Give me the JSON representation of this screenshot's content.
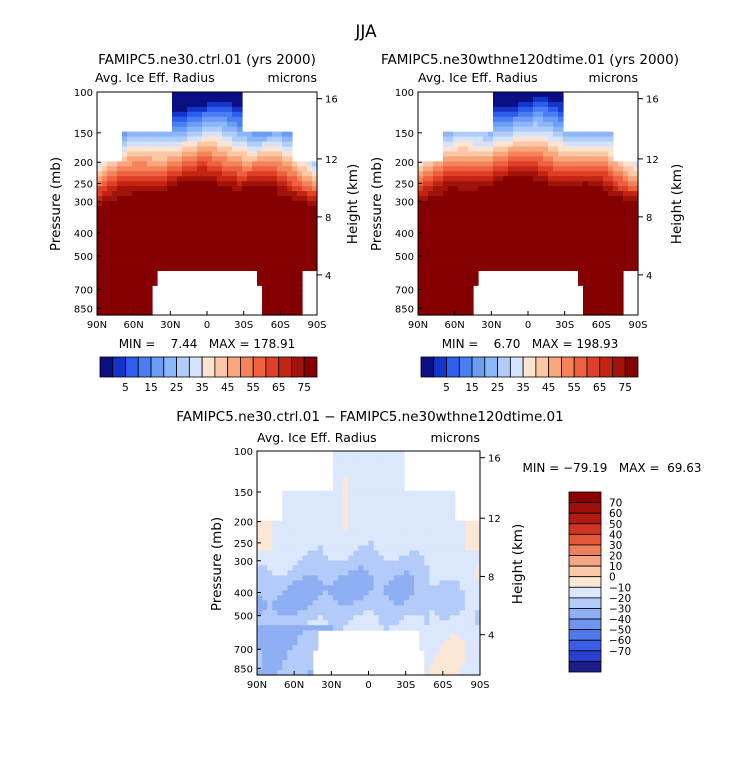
{
  "figure": {
    "title": "JJA"
  },
  "chart_data": [
    {
      "type": "heatmap",
      "title": "FAMIPC5.ne30.ctrl.01 (yrs 2000)",
      "subtitle_left": "Avg. Ice Eff. Radius",
      "subtitle_right": "microns",
      "ylabel": "Pressure (mb)",
      "y2label": "Height (km)",
      "x_ticks": [
        "90N",
        "60N",
        "30N",
        "0",
        "30S",
        "60S",
        "90S"
      ],
      "y_ticks": [
        "100",
        "150",
        "200",
        "250",
        "300",
        "400",
        "500",
        "700",
        "850"
      ],
      "y2_ticks": [
        "16",
        "12",
        "8",
        "4"
      ],
      "stats": "MIN =    7.44   MAX = 178.91",
      "colorbar": {
        "orientation": "horizontal",
        "labels": [
          "5",
          "15",
          "25",
          "35",
          "45",
          "55",
          "65",
          "75"
        ],
        "levels": [
          0,
          5,
          10,
          15,
          20,
          25,
          30,
          35,
          40,
          45,
          50,
          55,
          60,
          65,
          70,
          75,
          80
        ]
      }
    },
    {
      "type": "heatmap",
      "title": "FAMIPC5.ne30wthne120dtime.01 (yrs 2000)",
      "subtitle_left": "Avg. Ice Eff. Radius",
      "subtitle_right": "microns",
      "ylabel": "Pressure (mb)",
      "y2label": "Height (km)",
      "x_ticks": [
        "90N",
        "60N",
        "30N",
        "0",
        "30S",
        "60S",
        "90S"
      ],
      "y_ticks": [
        "100",
        "150",
        "200",
        "250",
        "300",
        "400",
        "500",
        "700",
        "850"
      ],
      "y2_ticks": [
        "16",
        "12",
        "8",
        "4"
      ],
      "stats": "MIN =    6.70   MAX = 198.93",
      "colorbar": {
        "orientation": "horizontal",
        "labels": [
          "5",
          "15",
          "25",
          "35",
          "45",
          "55",
          "65",
          "75"
        ],
        "levels": [
          0,
          5,
          10,
          15,
          20,
          25,
          30,
          35,
          40,
          45,
          50,
          55,
          60,
          65,
          70,
          75,
          80
        ]
      }
    },
    {
      "type": "heatmap",
      "title": "FAMIPC5.ne30.ctrl.01 − FAMIPC5.ne30wthne120dtime.01",
      "subtitle_left": "Avg. Ice Eff. Radius",
      "subtitle_right": "microns",
      "ylabel": "Pressure (mb)",
      "y2label": "Height (km)",
      "x_ticks": [
        "90N",
        "60N",
        "30N",
        "0",
        "30S",
        "60S",
        "90S"
      ],
      "y_ticks": [
        "100",
        "150",
        "200",
        "250",
        "300",
        "400",
        "500",
        "700",
        "850"
      ],
      "y2_ticks": [
        "16",
        "12",
        "8",
        "4"
      ],
      "stats": "MIN = −79.19   MAX =  69.63",
      "colorbar": {
        "orientation": "vertical",
        "labels": [
          "70",
          "60",
          "50",
          "40",
          "30",
          "20",
          "10",
          "0",
          "−10",
          "−20",
          "−30",
          "−40",
          "−50",
          "−60",
          "−70"
        ],
        "levels": [
          -75,
          -70,
          -60,
          -50,
          -40,
          -30,
          -20,
          -10,
          0,
          10,
          20,
          30,
          40,
          50,
          60,
          70,
          75
        ]
      }
    }
  ],
  "palette": {
    "seq": [
      "#0a0f83",
      "#1535c8",
      "#2d5ded",
      "#4a7ef3",
      "#6b9cf6",
      "#8db6f8",
      "#b0cdfa",
      "#d4e4fc",
      "#fce4d0",
      "#fbc7a5",
      "#f8a67c",
      "#f4835a",
      "#ee6140",
      "#df3f27",
      "#c42512",
      "#a0120a",
      "#850000"
    ],
    "diff": [
      "#1e1e88",
      "#2a3fcf",
      "#3a5ee8",
      "#5279ec",
      "#6e95f0",
      "#8eaff4",
      "#b3cbf8",
      "#dbe7fc",
      "#fce7d7",
      "#f9c9aa",
      "#f4a582",
      "#ee7f5b",
      "#e45838",
      "#cf3520",
      "#b21b10",
      "#a00f0a",
      "#8a0000"
    ],
    "missing": "#ffffff"
  }
}
